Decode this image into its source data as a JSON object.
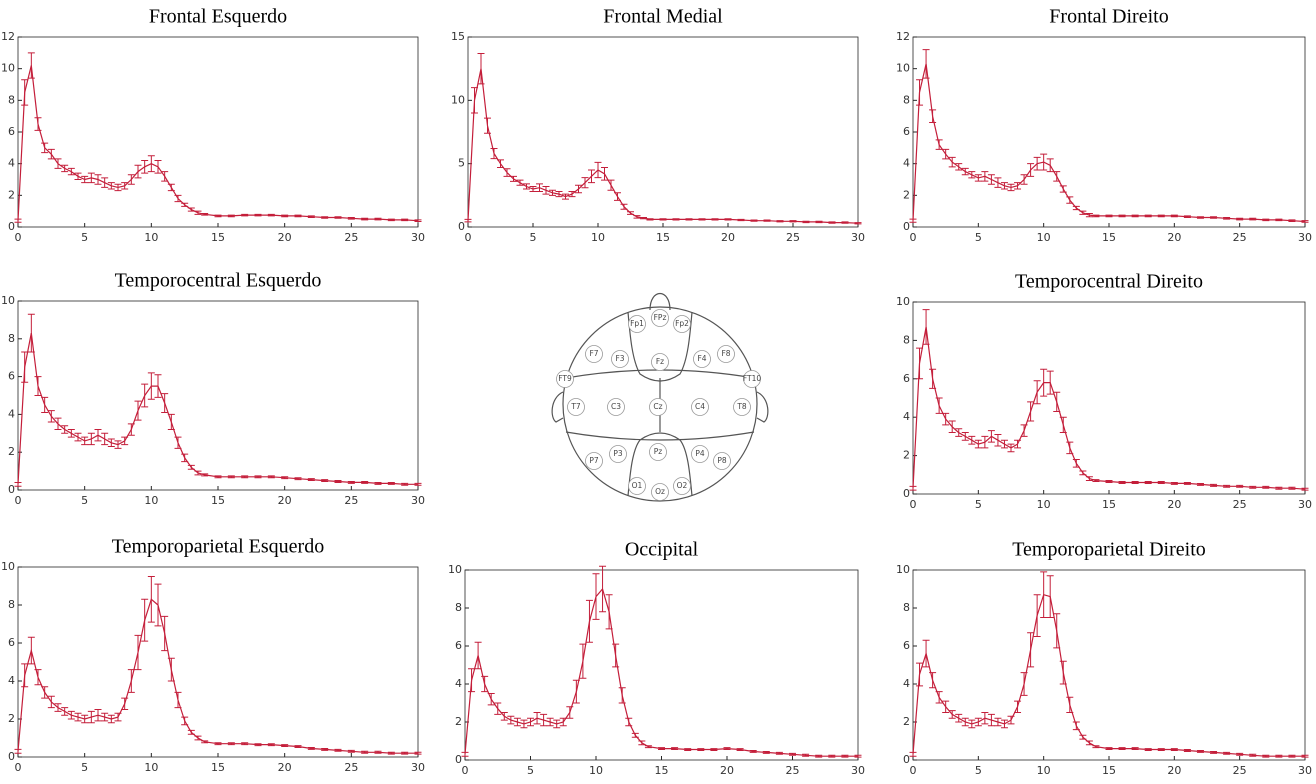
{
  "chart_data": [
    {
      "type": "line",
      "title": "Frontal Esquerdo",
      "color": "#c41e3a",
      "x": [
        0,
        0.5,
        1,
        1.5,
        2,
        2.5,
        3,
        3.5,
        4,
        4.5,
        5,
        5.5,
        6,
        6.5,
        7,
        7.5,
        8,
        8.5,
        9,
        9.5,
        10,
        10.5,
        11,
        11.5,
        12,
        12.5,
        13,
        13.5,
        14,
        15,
        16,
        17,
        18,
        19,
        20,
        21,
        22,
        23,
        24,
        25,
        26,
        27,
        28,
        29,
        30
      ],
      "values": [
        0.4,
        8.5,
        10.2,
        6.5,
        5.0,
        4.6,
        4.0,
        3.7,
        3.5,
        3.2,
        3.0,
        3.1,
        3.0,
        2.8,
        2.6,
        2.5,
        2.6,
        3.0,
        3.5,
        3.8,
        4.0,
        3.8,
        3.2,
        2.5,
        1.8,
        1.4,
        1.1,
        0.9,
        0.8,
        0.7,
        0.7,
        0.75,
        0.75,
        0.75,
        0.7,
        0.7,
        0.65,
        0.6,
        0.6,
        0.55,
        0.5,
        0.5,
        0.45,
        0.45,
        0.4
      ],
      "errors": [
        0.1,
        0.8,
        0.8,
        0.4,
        0.3,
        0.3,
        0.3,
        0.2,
        0.2,
        0.2,
        0.2,
        0.3,
        0.3,
        0.3,
        0.2,
        0.2,
        0.2,
        0.3,
        0.4,
        0.4,
        0.5,
        0.4,
        0.3,
        0.2,
        0.2,
        0.1,
        0.1,
        0.1,
        0.05,
        0.05,
        0.05,
        0.05,
        0.05,
        0.05,
        0.05,
        0.05,
        0.05,
        0.05,
        0.05,
        0.05,
        0.05,
        0.05,
        0.05,
        0.05,
        0.05
      ],
      "xlim": [
        0,
        30
      ],
      "xticks": [
        0,
        5,
        10,
        15,
        20,
        25,
        30
      ],
      "ylim": [
        0,
        12
      ],
      "yticks": [
        0,
        2,
        4,
        6,
        8,
        10,
        12
      ]
    },
    {
      "type": "line",
      "title": "Frontal Medial",
      "color": "#c41e3a",
      "x": [
        0,
        0.5,
        1,
        1.5,
        2,
        2.5,
        3,
        3.5,
        4,
        4.5,
        5,
        5.5,
        6,
        6.5,
        7,
        7.5,
        8,
        8.5,
        9,
        9.5,
        10,
        10.5,
        11,
        11.5,
        12,
        12.5,
        13,
        13.5,
        14,
        15,
        16,
        17,
        18,
        19,
        20,
        21,
        22,
        23,
        24,
        25,
        26,
        27,
        28,
        29,
        30
      ],
      "values": [
        0.5,
        10,
        12.5,
        8,
        5.8,
        5,
        4.3,
        3.8,
        3.5,
        3.2,
        3.0,
        3.1,
        2.9,
        2.7,
        2.6,
        2.4,
        2.6,
        3.0,
        3.5,
        4.0,
        4.5,
        4.2,
        3.3,
        2.4,
        1.6,
        1.1,
        0.8,
        0.7,
        0.6,
        0.6,
        0.6,
        0.6,
        0.6,
        0.6,
        0.6,
        0.55,
        0.5,
        0.5,
        0.45,
        0.45,
        0.4,
        0.4,
        0.35,
        0.35,
        0.3
      ],
      "errors": [
        0.1,
        1.0,
        1.2,
        0.6,
        0.4,
        0.3,
        0.3,
        0.2,
        0.2,
        0.2,
        0.2,
        0.3,
        0.3,
        0.2,
        0.2,
        0.2,
        0.2,
        0.3,
        0.4,
        0.5,
        0.6,
        0.5,
        0.4,
        0.3,
        0.2,
        0.1,
        0.1,
        0.05,
        0.05,
        0.05,
        0.05,
        0.05,
        0.05,
        0.05,
        0.05,
        0.05,
        0.05,
        0.05,
        0.05,
        0.05,
        0.05,
        0.05,
        0.05,
        0.05,
        0.05
      ],
      "xlim": [
        0,
        30
      ],
      "xticks": [
        0,
        5,
        10,
        15,
        20,
        25,
        30
      ],
      "ylim": [
        0,
        15
      ],
      "yticks": [
        0,
        5,
        10,
        15
      ]
    },
    {
      "type": "line",
      "title": "Frontal Direito",
      "color": "#c41e3a",
      "x": [
        0,
        0.5,
        1,
        1.5,
        2,
        2.5,
        3,
        3.5,
        4,
        4.5,
        5,
        5.5,
        6,
        6.5,
        7,
        7.5,
        8,
        8.5,
        9,
        9.5,
        10,
        10.5,
        11,
        11.5,
        12,
        12.5,
        13,
        13.5,
        14,
        15,
        16,
        17,
        18,
        19,
        20,
        21,
        22,
        23,
        24,
        25,
        26,
        27,
        28,
        29,
        30
      ],
      "values": [
        0.4,
        8.5,
        10.3,
        7.0,
        5.2,
        4.6,
        4.1,
        3.8,
        3.5,
        3.3,
        3.1,
        3.2,
        3.0,
        2.8,
        2.6,
        2.5,
        2.6,
        3.0,
        3.6,
        4.0,
        4.1,
        3.9,
        3.2,
        2.4,
        1.7,
        1.2,
        0.9,
        0.75,
        0.7,
        0.7,
        0.7,
        0.7,
        0.7,
        0.7,
        0.7,
        0.65,
        0.6,
        0.6,
        0.55,
        0.5,
        0.5,
        0.45,
        0.45,
        0.4,
        0.35
      ],
      "errors": [
        0.1,
        0.8,
        0.9,
        0.4,
        0.3,
        0.3,
        0.3,
        0.2,
        0.2,
        0.2,
        0.2,
        0.3,
        0.3,
        0.3,
        0.2,
        0.2,
        0.2,
        0.3,
        0.4,
        0.4,
        0.5,
        0.4,
        0.3,
        0.2,
        0.2,
        0.1,
        0.1,
        0.1,
        0.05,
        0.05,
        0.05,
        0.05,
        0.05,
        0.05,
        0.05,
        0.05,
        0.05,
        0.05,
        0.05,
        0.05,
        0.05,
        0.05,
        0.05,
        0.05,
        0.05
      ],
      "xlim": [
        0,
        30
      ],
      "xticks": [
        0,
        5,
        10,
        15,
        20,
        25,
        30
      ],
      "ylim": [
        0,
        12
      ],
      "yticks": [
        0,
        2,
        4,
        6,
        8,
        10,
        12
      ]
    },
    {
      "type": "line",
      "title": "Temporocentral Esquerdo",
      "color": "#c41e3a",
      "x": [
        0,
        0.5,
        1,
        1.5,
        2,
        2.5,
        3,
        3.5,
        4,
        4.5,
        5,
        5.5,
        6,
        6.5,
        7,
        7.5,
        8,
        8.5,
        9,
        9.5,
        10,
        10.5,
        11,
        11.5,
        12,
        12.5,
        13,
        13.5,
        14,
        15,
        16,
        17,
        18,
        19,
        20,
        21,
        22,
        23,
        24,
        25,
        26,
        27,
        28,
        29,
        30
      ],
      "values": [
        0.3,
        6.5,
        8.3,
        5.5,
        4.5,
        3.9,
        3.5,
        3.2,
        3.0,
        2.8,
        2.6,
        2.7,
        2.9,
        2.7,
        2.5,
        2.4,
        2.6,
        3.2,
        4.2,
        5.0,
        5.5,
        5.5,
        4.6,
        3.6,
        2.5,
        1.7,
        1.2,
        0.9,
        0.8,
        0.7,
        0.7,
        0.7,
        0.7,
        0.7,
        0.65,
        0.6,
        0.55,
        0.5,
        0.45,
        0.4,
        0.4,
        0.35,
        0.35,
        0.3,
        0.3
      ],
      "errors": [
        0.1,
        0.8,
        1.0,
        0.5,
        0.4,
        0.3,
        0.3,
        0.2,
        0.2,
        0.2,
        0.2,
        0.3,
        0.3,
        0.3,
        0.2,
        0.2,
        0.2,
        0.3,
        0.5,
        0.6,
        0.7,
        0.6,
        0.5,
        0.4,
        0.3,
        0.2,
        0.1,
        0.1,
        0.05,
        0.05,
        0.05,
        0.05,
        0.05,
        0.05,
        0.05,
        0.05,
        0.05,
        0.05,
        0.05,
        0.05,
        0.05,
        0.05,
        0.05,
        0.05,
        0.05
      ],
      "xlim": [
        0,
        30
      ],
      "xticks": [
        0,
        5,
        10,
        15,
        20,
        25,
        30
      ],
      "ylim": [
        0,
        10
      ],
      "yticks": [
        0,
        2,
        4,
        6,
        8,
        10
      ]
    },
    {
      "type": "line",
      "title": "Temporocentral Direito",
      "color": "#c41e3a",
      "x": [
        0,
        0.5,
        1,
        1.5,
        2,
        2.5,
        3,
        3.5,
        4,
        4.5,
        5,
        5.5,
        6,
        6.5,
        7,
        7.5,
        8,
        8.5,
        9,
        9.5,
        10,
        10.5,
        11,
        11.5,
        12,
        12.5,
        13,
        13.5,
        14,
        15,
        16,
        17,
        18,
        19,
        20,
        21,
        22,
        23,
        24,
        25,
        26,
        27,
        28,
        29,
        30
      ],
      "values": [
        0.3,
        6.8,
        8.7,
        6.0,
        4.6,
        3.9,
        3.5,
        3.2,
        3.0,
        2.8,
        2.6,
        2.7,
        3.0,
        2.8,
        2.6,
        2.4,
        2.6,
        3.3,
        4.3,
        5.3,
        5.8,
        5.8,
        4.8,
        3.6,
        2.4,
        1.6,
        1.1,
        0.8,
        0.7,
        0.65,
        0.6,
        0.6,
        0.6,
        0.6,
        0.55,
        0.55,
        0.5,
        0.45,
        0.4,
        0.4,
        0.35,
        0.35,
        0.3,
        0.3,
        0.25
      ],
      "errors": [
        0.1,
        0.8,
        0.9,
        0.5,
        0.4,
        0.3,
        0.3,
        0.2,
        0.2,
        0.2,
        0.2,
        0.3,
        0.3,
        0.3,
        0.2,
        0.2,
        0.2,
        0.3,
        0.5,
        0.6,
        0.7,
        0.6,
        0.5,
        0.4,
        0.3,
        0.2,
        0.1,
        0.1,
        0.05,
        0.05,
        0.05,
        0.05,
        0.05,
        0.05,
        0.05,
        0.05,
        0.05,
        0.05,
        0.05,
        0.05,
        0.05,
        0.05,
        0.05,
        0.05,
        0.05
      ],
      "xlim": [
        0,
        30
      ],
      "xticks": [
        0,
        5,
        10,
        15,
        20,
        25,
        30
      ],
      "ylim": [
        0,
        10
      ],
      "yticks": [
        0,
        2,
        4,
        6,
        8,
        10
      ]
    },
    {
      "type": "line",
      "title": "Temporoparietal Esquerdo",
      "color": "#c41e3a",
      "x": [
        0,
        0.5,
        1,
        1.5,
        2,
        2.5,
        3,
        3.5,
        4,
        4.5,
        5,
        5.5,
        6,
        6.5,
        7,
        7.5,
        8,
        8.5,
        9,
        9.5,
        10,
        10.5,
        11,
        11.5,
        12,
        12.5,
        13,
        13.5,
        14,
        15,
        16,
        17,
        18,
        19,
        20,
        21,
        22,
        23,
        24,
        25,
        26,
        27,
        28,
        29,
        30
      ],
      "values": [
        0.3,
        4.3,
        5.6,
        4.2,
        3.4,
        2.9,
        2.6,
        2.4,
        2.2,
        2.1,
        2.0,
        2.1,
        2.2,
        2.1,
        2.0,
        2.1,
        2.8,
        4.0,
        5.5,
        7.2,
        8.3,
        8.0,
        6.5,
        4.6,
        3.0,
        1.9,
        1.3,
        1.0,
        0.8,
        0.7,
        0.7,
        0.7,
        0.65,
        0.65,
        0.6,
        0.55,
        0.45,
        0.4,
        0.35,
        0.3,
        0.25,
        0.25,
        0.2,
        0.2,
        0.2
      ],
      "errors": [
        0.1,
        0.6,
        0.7,
        0.4,
        0.3,
        0.3,
        0.2,
        0.2,
        0.2,
        0.2,
        0.2,
        0.3,
        0.3,
        0.2,
        0.2,
        0.2,
        0.3,
        0.6,
        0.9,
        1.1,
        1.2,
        1.1,
        0.9,
        0.6,
        0.4,
        0.2,
        0.1,
        0.1,
        0.05,
        0.05,
        0.05,
        0.05,
        0.05,
        0.05,
        0.05,
        0.05,
        0.05,
        0.05,
        0.05,
        0.05,
        0.05,
        0.05,
        0.05,
        0.05,
        0.05
      ],
      "xlim": [
        0,
        30
      ],
      "xticks": [
        0,
        5,
        10,
        15,
        20,
        25,
        30
      ],
      "ylim": [
        0,
        10
      ],
      "yticks": [
        0,
        2,
        4,
        6,
        8,
        10
      ]
    },
    {
      "type": "line",
      "title": "Occipital",
      "color": "#c41e3a",
      "x": [
        0,
        0.5,
        1,
        1.5,
        2,
        2.5,
        3,
        3.5,
        4,
        4.5,
        5,
        5.5,
        6,
        6.5,
        7,
        7.5,
        8,
        8.5,
        9,
        9.5,
        10,
        10.5,
        11,
        11.5,
        12,
        12.5,
        13,
        13.5,
        14,
        15,
        16,
        17,
        18,
        19,
        20,
        21,
        22,
        23,
        24,
        25,
        26,
        27,
        28,
        29,
        30
      ],
      "values": [
        0.3,
        4.2,
        5.5,
        4.0,
        3.2,
        2.7,
        2.3,
        2.1,
        2.0,
        1.9,
        2.0,
        2.2,
        2.1,
        2.0,
        1.9,
        2.0,
        2.5,
        3.6,
        5.2,
        7.3,
        8.6,
        9.0,
        7.8,
        5.5,
        3.4,
        2.0,
        1.3,
        0.9,
        0.7,
        0.6,
        0.6,
        0.55,
        0.55,
        0.55,
        0.6,
        0.55,
        0.45,
        0.4,
        0.35,
        0.3,
        0.25,
        0.2,
        0.2,
        0.2,
        0.2
      ],
      "errors": [
        0.1,
        0.6,
        0.7,
        0.4,
        0.3,
        0.3,
        0.2,
        0.2,
        0.2,
        0.2,
        0.2,
        0.3,
        0.3,
        0.2,
        0.2,
        0.2,
        0.3,
        0.6,
        0.9,
        1.1,
        1.2,
        1.2,
        0.9,
        0.6,
        0.4,
        0.2,
        0.1,
        0.1,
        0.05,
        0.05,
        0.05,
        0.05,
        0.05,
        0.05,
        0.05,
        0.05,
        0.05,
        0.05,
        0.05,
        0.05,
        0.05,
        0.05,
        0.05,
        0.05,
        0.05
      ],
      "xlim": [
        0,
        30
      ],
      "xticks": [
        0,
        5,
        10,
        15,
        20,
        25,
        30
      ],
      "ylim": [
        0,
        10
      ],
      "yticks": [
        0,
        2,
        4,
        6,
        8,
        10
      ]
    },
    {
      "type": "line",
      "title": "Temporoparietal Direito",
      "color": "#c41e3a",
      "x": [
        0,
        0.5,
        1,
        1.5,
        2,
        2.5,
        3,
        3.5,
        4,
        4.5,
        5,
        5.5,
        6,
        6.5,
        7,
        7.5,
        8,
        8.5,
        9,
        9.5,
        10,
        10.5,
        11,
        11.5,
        12,
        12.5,
        13,
        13.5,
        14,
        15,
        16,
        17,
        18,
        19,
        20,
        21,
        22,
        23,
        24,
        25,
        26,
        27,
        28,
        29,
        30
      ],
      "values": [
        0.3,
        4.5,
        5.6,
        4.2,
        3.3,
        2.8,
        2.4,
        2.2,
        2.0,
        1.9,
        2.0,
        2.2,
        2.1,
        2.0,
        1.9,
        2.1,
        2.8,
        4.0,
        5.8,
        7.6,
        8.7,
        8.6,
        6.8,
        4.6,
        2.9,
        1.8,
        1.2,
        0.9,
        0.7,
        0.6,
        0.6,
        0.6,
        0.55,
        0.55,
        0.55,
        0.5,
        0.45,
        0.4,
        0.35,
        0.3,
        0.25,
        0.2,
        0.2,
        0.2,
        0.2
      ],
      "errors": [
        0.1,
        0.6,
        0.7,
        0.4,
        0.3,
        0.3,
        0.2,
        0.2,
        0.2,
        0.2,
        0.2,
        0.3,
        0.3,
        0.2,
        0.2,
        0.2,
        0.3,
        0.6,
        0.9,
        1.1,
        1.2,
        1.1,
        0.9,
        0.6,
        0.4,
        0.2,
        0.1,
        0.1,
        0.05,
        0.05,
        0.05,
        0.05,
        0.05,
        0.05,
        0.05,
        0.05,
        0.05,
        0.05,
        0.05,
        0.05,
        0.05,
        0.05,
        0.05,
        0.05,
        0.05
      ],
      "xlim": [
        0,
        30
      ],
      "xticks": [
        0,
        5,
        10,
        15,
        20,
        25,
        30
      ],
      "ylim": [
        0,
        10
      ],
      "yticks": [
        0,
        2,
        4,
        6,
        8,
        10
      ]
    }
  ],
  "head_diagram": {
    "electrodes": [
      "Fp1",
      "FPz",
      "Fp2",
      "F7",
      "F3",
      "Fz",
      "F4",
      "F8",
      "FT9",
      "FT10",
      "T7",
      "C3",
      "Cz",
      "C4",
      "T8",
      "P7",
      "P3",
      "Pz",
      "P4",
      "P8",
      "O1",
      "Oz",
      "O2"
    ]
  }
}
